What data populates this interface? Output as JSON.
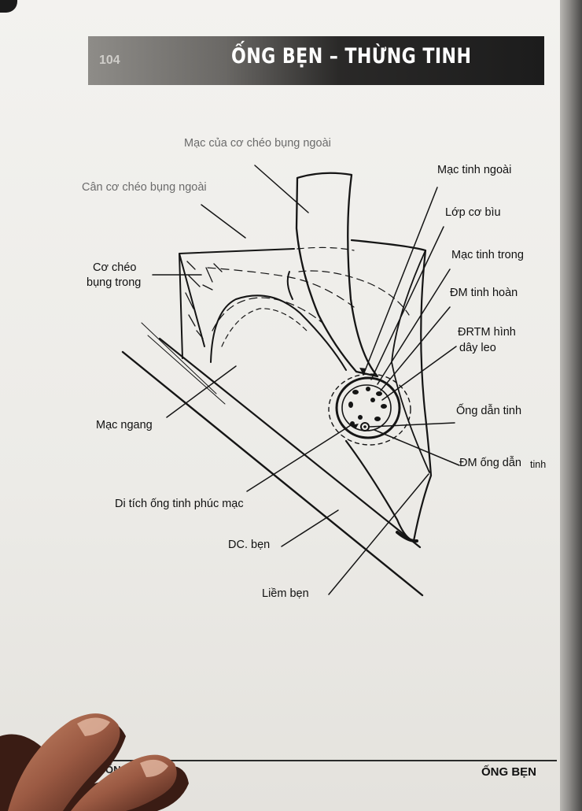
{
  "header": {
    "page_number": "104",
    "title": "ỐNG BẸN – THỪNG TINH"
  },
  "diagram": {
    "labels": {
      "mac_co_cheo_bung_ngoai": "Mạc của cơ chéo bụng ngoài",
      "can_co_cheo_bung_ngoai": "Cân cơ chéo bụng ngoài",
      "co_cheo_bung_trong_1": "Cơ chéo",
      "co_cheo_bung_trong_2": "bụng trong",
      "mac_ngang": "Mạc ngang",
      "di_tich_ong_tinh": "Di tích ống tinh phúc mạc",
      "dc_ben": "DC. bẹn",
      "liem_ben": "Liềm bẹn",
      "mac_tinh_ngoai": "Mạc tinh ngoài",
      "lop_co_biu": "Lớp cơ bìu",
      "mac_tinh_trong": "Mạc tinh trong",
      "dm_tinh_hoan": "ĐM tinh hoàn",
      "drtm_1": "ĐRTM hình",
      "drtm_2": "dây leo",
      "ong_dan_tinh": "Ống dẫn tinh",
      "dm_ong_dan_tinh_1": "ĐM ống dẫn",
      "dm_ong_dan_tinh_2": "tinh"
    }
  },
  "footer": {
    "left_fragment": "ỐNG",
    "right_title": "ỐNG BẸN"
  }
}
